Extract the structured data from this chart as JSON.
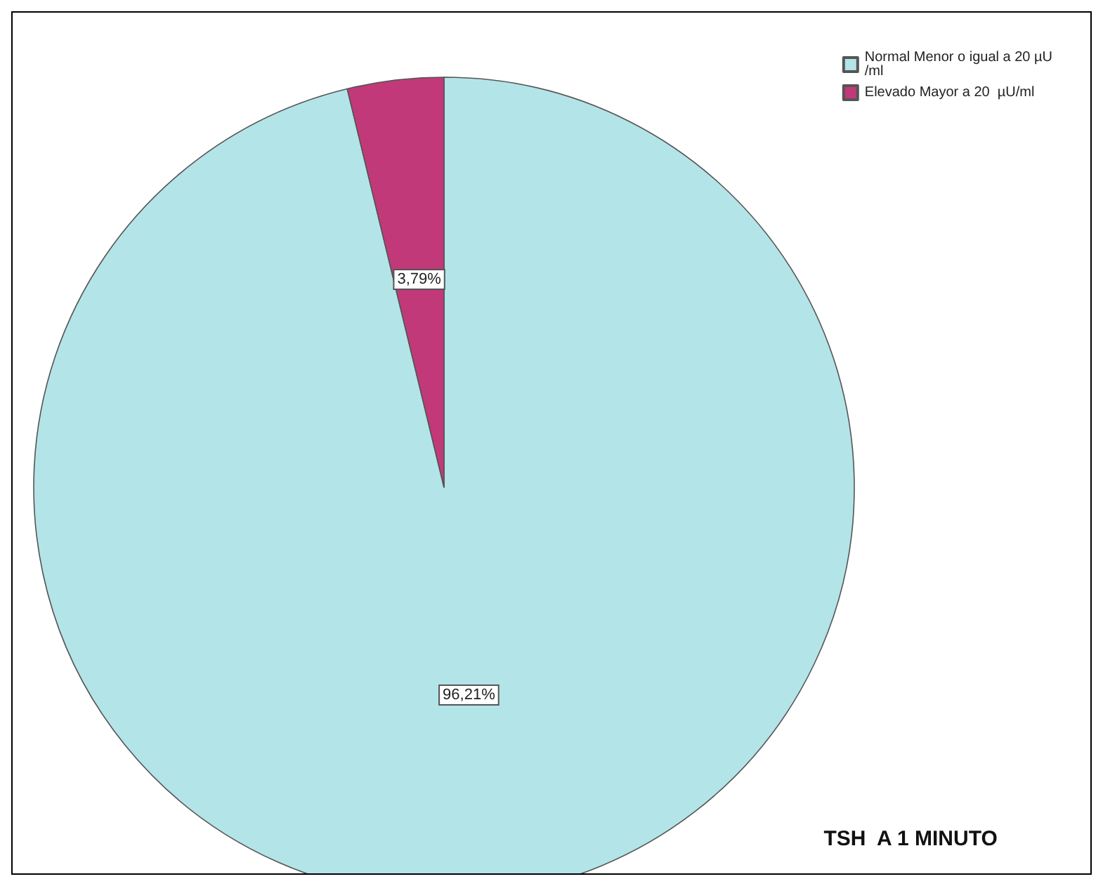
{
  "chart_data": {
    "type": "pie",
    "title": "TSH  A 1 MINUTO",
    "categories": [
      "Normal Menor o igual a 20 µU/ml",
      "Elevado Mayor a 20  µU/ml"
    ],
    "values": [
      96.21,
      3.79
    ],
    "colors": [
      "#b3e4e8",
      "#c2397a"
    ],
    "value_labels": [
      "96,21%",
      "3,79%"
    ],
    "legend": "top right"
  }
}
